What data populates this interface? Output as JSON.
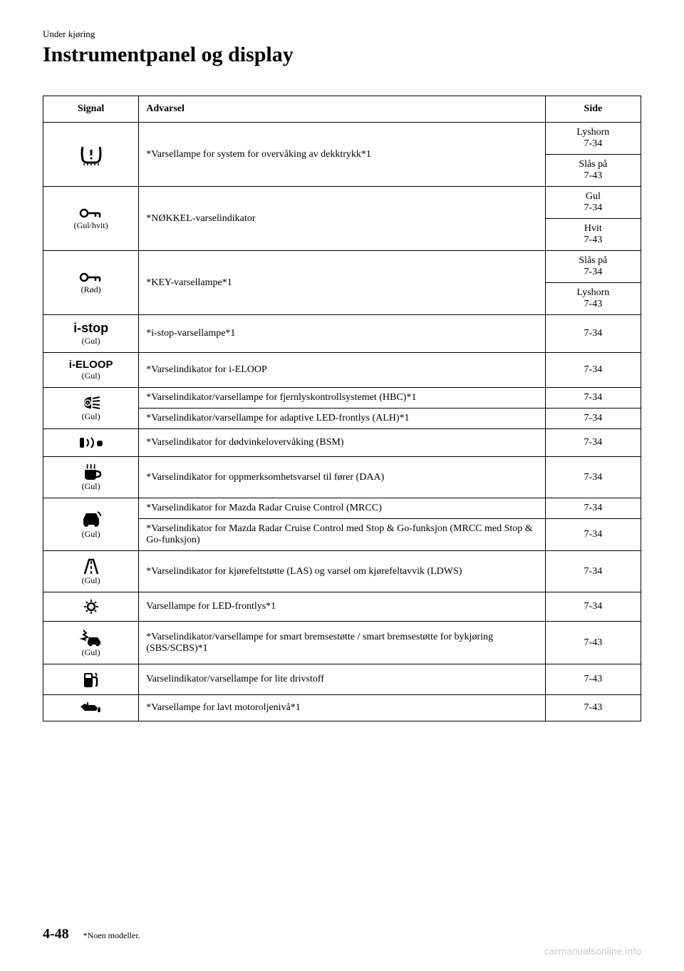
{
  "header": {
    "small": "Under kjøring",
    "large": "Instrumentpanel og display"
  },
  "table": {
    "headers": [
      "Signal",
      "Advarsel",
      "Side"
    ],
    "rows": [
      {
        "signal": {
          "icon": "tire-pressure",
          "label": ""
        },
        "warning": "*Varsellampe for system for overvåking av dekktrykk*1",
        "pages": [
          "Lyshorn\n7-34",
          "Slås på\n7-43"
        ],
        "rowspan": 2
      },
      {
        "signal": {
          "icon": "key",
          "label": "(Gul/hvit)"
        },
        "warning": "*NØKKEL-varselindikator",
        "pages": [
          "Gul\n7-34",
          "Hvit\n7-43"
        ],
        "rowspan": 2
      },
      {
        "signal": {
          "icon": "key",
          "label": "(Rød)"
        },
        "warning": "*KEY-varsellampe*1",
        "pages": [
          "Slås på\n7-34",
          "Lyshorn\n7-43"
        ],
        "rowspan": 2
      },
      {
        "signal": {
          "icon": "istop-text",
          "text": "i-stop",
          "label": "(Gul)"
        },
        "warning": "*i-stop-varsellampe*1",
        "pages": [
          "7-34"
        ]
      },
      {
        "signal": {
          "icon": "ieloop-text",
          "text": "i-ELOOP",
          "label": "(Gul)"
        },
        "warning": "*Varselindikator for i-ELOOP",
        "pages": [
          "7-34"
        ]
      },
      {
        "signal": {
          "icon": "headlight-auto",
          "label": "(Gul)"
        },
        "warnings": [
          {
            "text": "*Varselindikator/varsellampe for fjernlyskontrollsystemet (HBC)*1",
            "page": "7-34"
          },
          {
            "text": "*Varselindikator/varsellampe for adaptive LED-frontlys (ALH)*1",
            "page": "7-34"
          }
        ],
        "rowspan": 2
      },
      {
        "signal": {
          "icon": "bsm",
          "label": ""
        },
        "warning": "*Varselindikator for dødvinkelovervåking (BSM)",
        "pages": [
          "7-34"
        ]
      },
      {
        "signal": {
          "icon": "coffee",
          "label": "(Gul)"
        },
        "warning": "*Varselindikator for oppmerksomhetsvarsel til fører (DAA)",
        "pages": [
          "7-34"
        ]
      },
      {
        "signal": {
          "icon": "cruise",
          "label": "(Gul)"
        },
        "warnings": [
          {
            "text": "*Varselindikator for Mazda Radar Cruise Control (MRCC)",
            "page": "7-34"
          },
          {
            "text": "*Varselindikator for Mazda Radar Cruise Control med Stop & Go-funksjon (MRCC med Stop & Go-funksjon)",
            "page": "7-34"
          }
        ],
        "rowspan": 2
      },
      {
        "signal": {
          "icon": "lane",
          "label": "(Gul)"
        },
        "warning": "*Varselindikator for kjørefeltstøtte (LAS) og varsel om kjørefeltavvik (LDWS)",
        "pages": [
          "7-34"
        ]
      },
      {
        "signal": {
          "icon": "led-light",
          "label": ""
        },
        "warning": "Varsellampe for LED-frontlys*1",
        "pages": [
          "7-34"
        ]
      },
      {
        "signal": {
          "icon": "collision",
          "label": "(Gul)"
        },
        "warning": "*Varselindikator/varsellampe for smart bremsestøtte / smart bremsestøtte for bykjøring (SBS/SCBS)*1",
        "pages": [
          "7-43"
        ]
      },
      {
        "signal": {
          "icon": "fuel",
          "label": ""
        },
        "warning": "Varselindikator/varsellampe for lite drivstoff",
        "pages": [
          "7-43"
        ]
      },
      {
        "signal": {
          "icon": "oil",
          "label": ""
        },
        "warning": "*Varsellampe for lavt motoroljenivå*1",
        "pages": [
          "7-43"
        ]
      }
    ]
  },
  "footer": {
    "page": "4-48",
    "note": "*Noen modeller."
  },
  "watermark": "carmanualsonline.info"
}
